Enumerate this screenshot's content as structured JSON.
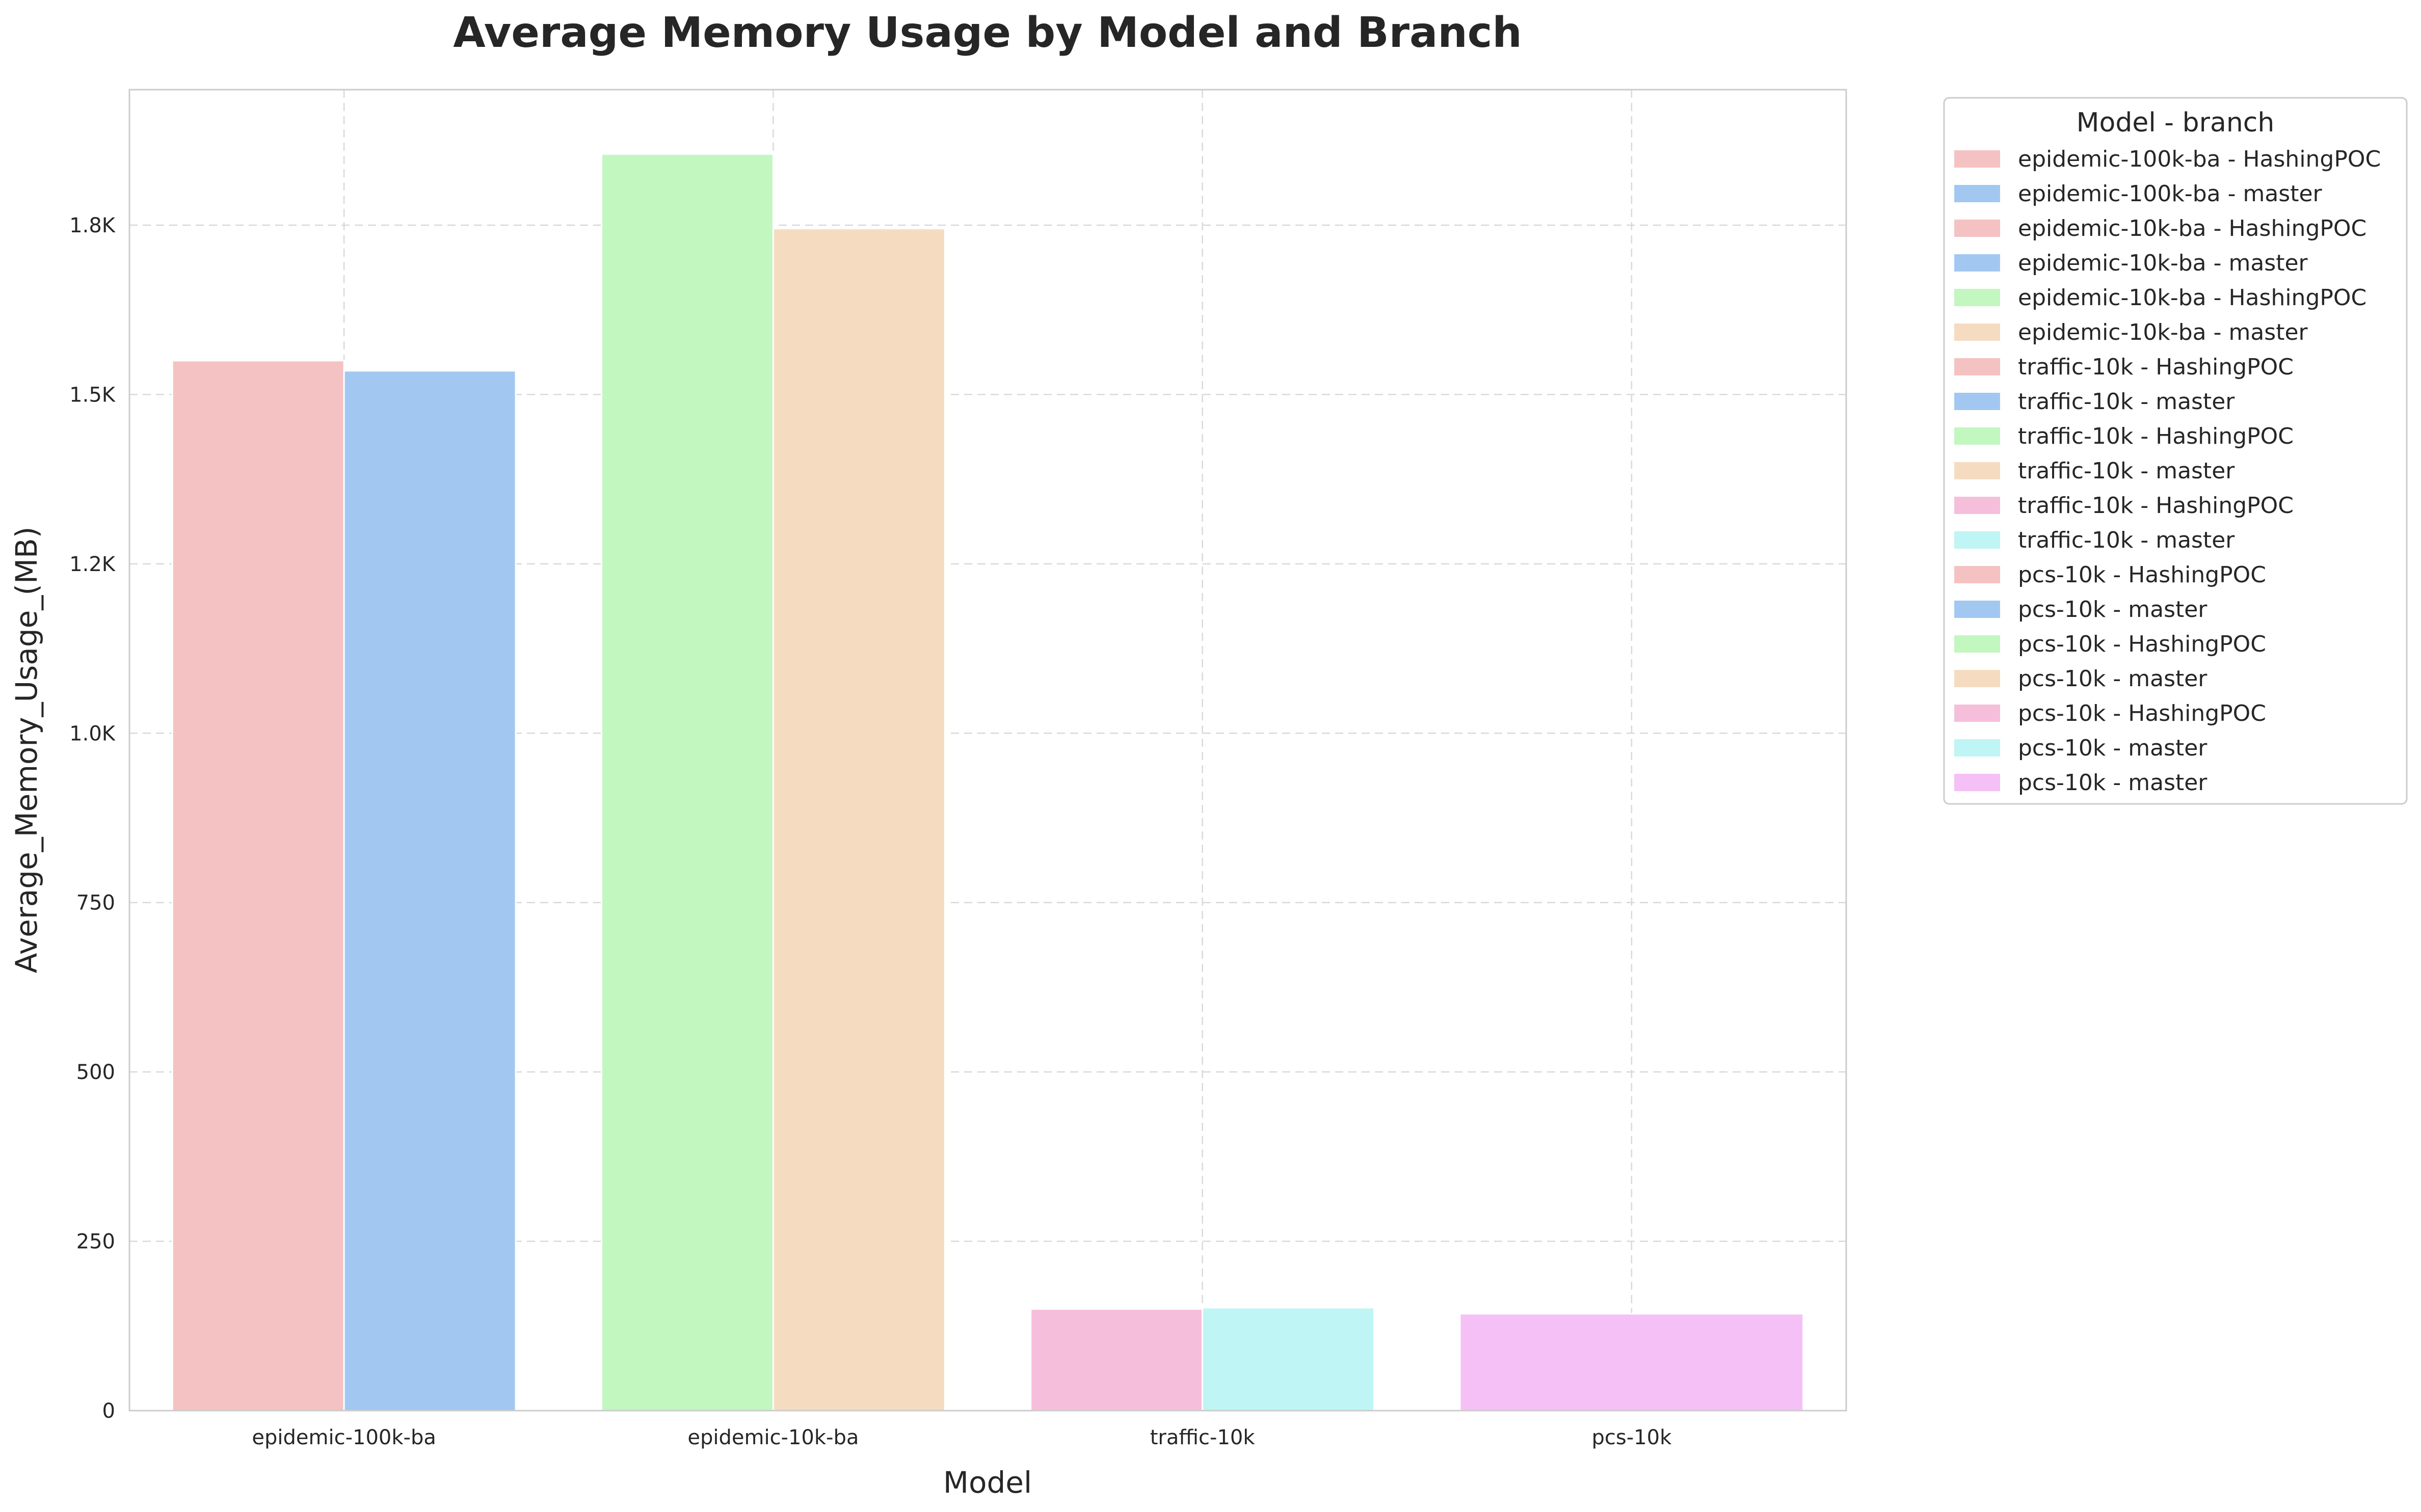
{
  "chart_data": {
    "type": "bar",
    "title": "Average Memory Usage by Model and Branch",
    "xlabel": "Model",
    "ylabel": "Average_Memory_Usage_(MB)",
    "ylim": [
      0,
      1950
    ],
    "yticks": [
      0,
      250,
      500,
      750,
      1000,
      1250,
      1500,
      1750
    ],
    "ytick_labels": [
      "0",
      "250",
      "500",
      "750",
      "1.0K",
      "1.2K",
      "1.5K",
      "1.8K"
    ],
    "grid": true,
    "categories": [
      "epidemic-100k-ba",
      "epidemic-10k-ba",
      "traffic-10k",
      "pcs-10k"
    ],
    "bars": [
      {
        "category_index": 0,
        "slot": 0,
        "width_slots": 1,
        "value": 1550,
        "color": "#f4c2c2"
      },
      {
        "category_index": 0,
        "slot": 1,
        "width_slots": 1,
        "value": 1535,
        "color": "#a2c8f2"
      },
      {
        "category_index": 1,
        "slot": 0,
        "width_slots": 1,
        "value": 1855,
        "color": "#c2f7c0"
      },
      {
        "category_index": 1,
        "slot": 1,
        "width_slots": 1,
        "value": 1745,
        "color": "#f5dcc1"
      },
      {
        "category_index": 2,
        "slot": 0,
        "width_slots": 1,
        "value": 150,
        "color": "#f5bfdc"
      },
      {
        "category_index": 2,
        "slot": 1,
        "width_slots": 1,
        "value": 152,
        "color": "#bff5f5"
      },
      {
        "category_index": 3,
        "slot": 0,
        "width_slots": 2,
        "value": 143,
        "color": "#f5c0f5"
      }
    ],
    "legend": {
      "title": "Model - branch",
      "position": "outside-right",
      "entries": [
        {
          "label": "epidemic-100k-ba - HashingPOC",
          "color": "#f4c2c2"
        },
        {
          "label": "epidemic-100k-ba - master",
          "color": "#a2c8f2"
        },
        {
          "label": "epidemic-10k-ba - HashingPOC",
          "color": "#f4c2c2"
        },
        {
          "label": "epidemic-10k-ba - master",
          "color": "#a2c8f2"
        },
        {
          "label": "epidemic-10k-ba - HashingPOC",
          "color": "#c2f7c0"
        },
        {
          "label": "epidemic-10k-ba - master",
          "color": "#f5dcc1"
        },
        {
          "label": "traffic-10k - HashingPOC",
          "color": "#f4c2c2"
        },
        {
          "label": "traffic-10k - master",
          "color": "#a2c8f2"
        },
        {
          "label": "traffic-10k - HashingPOC",
          "color": "#c2f7c0"
        },
        {
          "label": "traffic-10k - master",
          "color": "#f5dcc1"
        },
        {
          "label": "traffic-10k - HashingPOC",
          "color": "#f5bfdc"
        },
        {
          "label": "traffic-10k - master",
          "color": "#bff5f5"
        },
        {
          "label": "pcs-10k - HashingPOC",
          "color": "#f4c2c2"
        },
        {
          "label": "pcs-10k - master",
          "color": "#a2c8f2"
        },
        {
          "label": "pcs-10k - HashingPOC",
          "color": "#c2f7c0"
        },
        {
          "label": "pcs-10k - master",
          "color": "#f5dcc1"
        },
        {
          "label": "pcs-10k - HashingPOC",
          "color": "#f5bfdc"
        },
        {
          "label": "pcs-10k - master",
          "color": "#bff5f5"
        },
        {
          "label": "pcs-10k - master",
          "color": "#f5c0f5"
        }
      ]
    }
  }
}
